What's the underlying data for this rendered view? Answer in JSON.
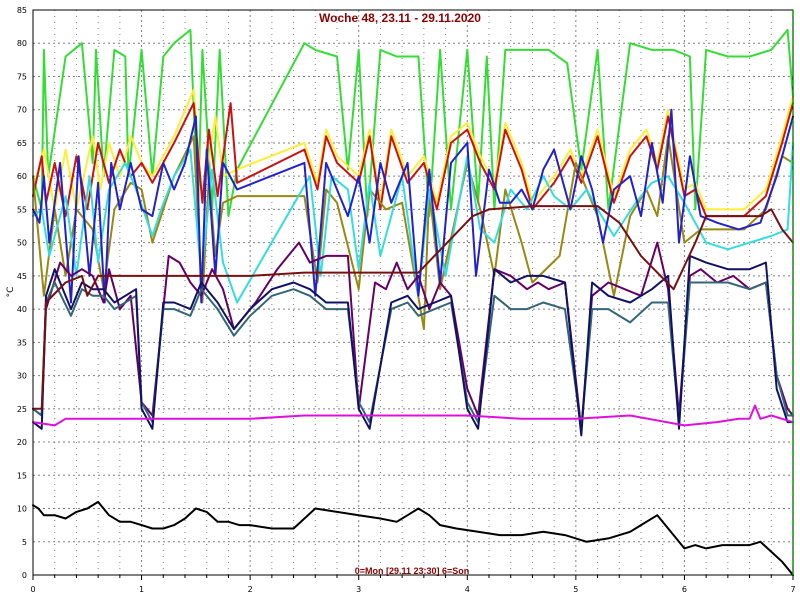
{
  "chart_data": {
    "type": "line",
    "title": "Woche 48, 23.11 - 29.11.2020",
    "subtitle": "0=Mon [29.11 23:30] 6=Son",
    "xlabel": "",
    "ylabel": "°C",
    "xlim": [
      0,
      7
    ],
    "ylim": [
      0,
      85
    ],
    "x_ticks": [
      0,
      1,
      2,
      3,
      4,
      5,
      6,
      7
    ],
    "y_ticks": [
      0,
      5,
      10,
      15,
      20,
      25,
      30,
      35,
      40,
      45,
      50,
      55,
      60,
      65,
      70,
      75,
      80,
      85
    ],
    "grid": true,
    "legend": "none",
    "colors": {
      "grid": "#808080",
      "end_marker": "#00a000",
      "title": "#8b0000",
      "frame": "#000000"
    },
    "series": [
      {
        "color": "#33dd33",
        "x": [
          0,
          0.08,
          0.1,
          0.14,
          0.3,
          0.45,
          0.55,
          0.58,
          0.65,
          0.75,
          0.85,
          0.88,
          1.0,
          1.1,
          1.2,
          1.3,
          1.45,
          1.52,
          1.56,
          1.65,
          1.72,
          1.8,
          1.88,
          2.5,
          2.6,
          2.8,
          2.9,
          3.0,
          3.08,
          3.2,
          3.35,
          3.55,
          3.65,
          3.75,
          3.85,
          4.0,
          4.1,
          4.18,
          4.25,
          4.35,
          4.5,
          4.6,
          4.75,
          4.92,
          5.05,
          5.2,
          5.3,
          5.5,
          5.7,
          5.9,
          6.05,
          6.1,
          6.2,
          6.4,
          6.6,
          6.8,
          6.95,
          7.0
        ],
        "values": [
          60,
          55,
          79,
          60,
          78,
          80,
          62,
          79,
          60,
          79,
          78,
          60,
          79,
          60,
          78,
          80,
          82,
          55,
          79,
          55,
          79,
          54,
          61,
          80,
          79,
          78,
          61,
          79,
          54,
          79,
          78,
          78,
          54,
          79,
          55,
          79,
          56,
          78,
          55,
          79,
          79,
          79,
          79,
          77,
          61,
          79,
          55,
          80,
          79,
          79,
          78,
          55,
          79,
          78,
          78,
          79,
          82,
          72
        ]
      },
      {
        "color": "#ffee33",
        "x": [
          0,
          0.1,
          0.2,
          0.3,
          0.4,
          0.55,
          0.62,
          0.7,
          0.8,
          0.9,
          1.0,
          1.1,
          1.3,
          1.48,
          1.56,
          1.68,
          1.75,
          1.88,
          2.5,
          2.62,
          2.7,
          2.8,
          3.0,
          3.1,
          3.2,
          3.3,
          3.45,
          3.6,
          3.72,
          3.85,
          4.0,
          4.12,
          4.25,
          4.35,
          4.5,
          4.6,
          4.8,
          4.95,
          5.05,
          5.2,
          5.35,
          5.5,
          5.65,
          5.75,
          5.85,
          6.0,
          6.1,
          6.2,
          6.35,
          6.55,
          6.75,
          6.9,
          7.0
        ],
        "values": [
          58,
          64,
          55,
          64,
          55,
          66,
          58,
          65,
          60,
          66,
          62,
          60,
          66,
          73,
          56,
          69,
          60,
          61,
          65,
          59,
          67,
          63,
          60,
          67,
          56,
          67,
          60,
          63,
          56,
          66,
          68,
          63,
          59,
          68,
          62,
          56,
          60,
          64,
          60,
          67,
          57,
          64,
          67,
          62,
          70,
          58,
          59,
          55,
          55,
          55,
          58,
          66,
          72
        ]
      },
      {
        "color": "#cc1111",
        "x": [
          0,
          0.08,
          0.12,
          0.2,
          0.3,
          0.4,
          0.5,
          0.6,
          0.7,
          0.8,
          0.9,
          1.0,
          1.1,
          1.3,
          1.48,
          1.56,
          1.62,
          1.7,
          1.82,
          1.88,
          2.5,
          2.62,
          2.7,
          2.8,
          3.0,
          3.1,
          3.2,
          3.3,
          3.45,
          3.6,
          3.72,
          3.85,
          4.0,
          4.12,
          4.25,
          4.35,
          4.5,
          4.6,
          4.8,
          4.95,
          5.05,
          5.2,
          5.35,
          5.5,
          5.65,
          5.75,
          5.85,
          6.0,
          6.1,
          6.2,
          6.35,
          6.55,
          6.75,
          6.9,
          7.0
        ],
        "values": [
          57,
          63,
          56,
          62,
          54,
          63,
          55,
          65,
          59,
          64,
          60,
          62,
          59,
          65,
          71,
          56,
          67,
          57,
          71,
          59,
          64,
          58,
          66,
          62,
          59,
          66,
          55,
          66,
          59,
          62,
          55,
          65,
          67,
          62,
          58,
          67,
          61,
          55,
          59,
          63,
          59,
          66,
          56,
          63,
          66,
          61,
          69,
          57,
          58,
          54,
          54,
          54,
          57,
          65,
          71
        ]
      },
      {
        "color": "#998811",
        "x": [
          0,
          0.1,
          0.2,
          0.3,
          0.4,
          0.55,
          0.65,
          0.75,
          0.9,
          1.0,
          1.1,
          1.3,
          1.48,
          1.56,
          1.62,
          1.68,
          1.75,
          1.88,
          2.5,
          2.62,
          2.7,
          2.8,
          3.0,
          3.1,
          3.25,
          3.4,
          3.6,
          3.65,
          3.75,
          4.0,
          4.12,
          4.25,
          4.35,
          4.5,
          4.6,
          4.85,
          5.0,
          5.1,
          5.2,
          5.35,
          5.5,
          5.65,
          5.75,
          5.85,
          6.0,
          6.15,
          6.35,
          6.55,
          6.75,
          6.9,
          7.0
        ],
        "values": [
          60,
          42,
          55,
          45,
          55,
          52,
          43,
          55,
          59,
          58,
          50,
          60,
          66,
          41,
          60,
          48,
          56,
          57,
          57,
          44,
          58,
          56,
          43,
          58,
          55,
          56,
          37,
          58,
          43,
          62,
          55,
          45,
          58,
          50,
          44,
          48,
          62,
          58,
          54,
          42,
          54,
          58,
          54,
          66,
          50,
          52,
          52,
          52,
          55,
          63,
          62
        ]
      },
      {
        "color": "#33dddd",
        "x": [
          0,
          0.08,
          0.15,
          0.3,
          0.4,
          0.52,
          0.6,
          0.7,
          0.85,
          0.95,
          1.1,
          1.18,
          1.3,
          1.45,
          1.55,
          1.65,
          1.75,
          1.88,
          2.55,
          2.65,
          2.75,
          2.9,
          3.0,
          3.1,
          3.2,
          3.4,
          3.55,
          3.65,
          3.8,
          4.0,
          4.12,
          4.25,
          4.4,
          4.55,
          4.7,
          4.8,
          4.95,
          5.1,
          5.2,
          5.35,
          5.55,
          5.7,
          5.85,
          6.0,
          6.2,
          6.4,
          6.6,
          6.8,
          6.95,
          7.0
        ],
        "values": [
          54,
          55,
          48,
          57,
          45,
          60,
          47,
          58,
          62,
          58,
          51,
          55,
          60,
          64,
          45,
          61,
          47,
          41,
          60,
          45,
          60,
          58,
          46,
          59,
          48,
          60,
          42,
          58,
          45,
          63,
          52,
          50,
          58,
          55,
          60,
          57,
          55,
          58,
          55,
          51,
          56,
          59,
          60,
          56,
          50,
          49,
          50,
          51,
          52,
          65
        ]
      },
      {
        "color": "#2222cc",
        "x": [
          0,
          0.06,
          0.1,
          0.15,
          0.25,
          0.35,
          0.42,
          0.52,
          0.6,
          0.66,
          0.72,
          0.8,
          0.9,
          1.0,
          1.1,
          1.2,
          1.3,
          1.4,
          1.5,
          1.55,
          1.6,
          1.68,
          1.75,
          1.88,
          2.5,
          2.6,
          2.7,
          2.8,
          2.9,
          3.0,
          3.1,
          3.2,
          3.3,
          3.45,
          3.55,
          3.65,
          3.75,
          3.85,
          4.0,
          4.08,
          4.2,
          4.3,
          4.4,
          4.5,
          4.6,
          4.7,
          4.8,
          4.95,
          5.05,
          5.15,
          5.25,
          5.35,
          5.5,
          5.6,
          5.7,
          5.8,
          5.88,
          5.95,
          6.05,
          6.15,
          6.3,
          6.5,
          6.7,
          6.85,
          6.95,
          7.0
        ],
        "values": [
          55,
          53,
          60,
          50,
          62,
          41,
          63,
          45,
          59,
          41,
          62,
          55,
          62,
          55,
          54,
          62,
          58,
          62,
          69,
          41,
          64,
          45,
          62,
          58,
          62,
          42,
          62,
          58,
          54,
          60,
          50,
          62,
          56,
          62,
          42,
          61,
          44,
          62,
          65,
          45,
          61,
          56,
          56,
          58,
          55,
          61,
          64,
          55,
          63,
          58,
          50,
          58,
          60,
          54,
          65,
          56,
          70,
          50,
          63,
          54,
          53,
          52,
          53,
          60,
          66,
          69
        ]
      },
      {
        "color": "#660066",
        "x": [
          0,
          0.08,
          0.12,
          0.25,
          0.35,
          0.45,
          0.55,
          0.65,
          0.7,
          0.8,
          0.9,
          1.0,
          1.1,
          1.25,
          1.35,
          1.45,
          1.55,
          1.65,
          1.75,
          1.85,
          2.05,
          2.25,
          2.45,
          2.55,
          2.7,
          2.9,
          3.0,
          3.15,
          3.25,
          3.35,
          3.45,
          3.55,
          3.65,
          3.75,
          3.85,
          4.0,
          4.1,
          4.25,
          4.4,
          4.55,
          4.65,
          4.75,
          4.9,
          5.05,
          5.15,
          5.3,
          5.45,
          5.6,
          5.75,
          5.85,
          5.95,
          6.05,
          6.15,
          6.3,
          6.45,
          6.6,
          6.75,
          6.85,
          6.95,
          7.0
        ],
        "values": [
          25,
          24,
          40,
          47,
          45,
          46,
          45,
          41,
          46,
          40,
          42,
          26,
          24,
          48,
          47,
          44,
          42,
          46,
          43,
          37,
          41,
          46,
          50,
          47,
          48,
          48,
          25,
          44,
          43,
          47,
          43,
          45,
          40,
          44,
          42,
          28,
          24,
          46,
          45,
          43,
          44,
          43,
          44,
          22,
          42,
          44,
          43,
          42,
          50,
          43,
          24,
          45,
          46,
          44,
          45,
          43,
          44,
          30,
          25,
          24
        ]
      },
      {
        "color": "#336677",
        "x": [
          0,
          0.08,
          0.12,
          0.2,
          0.35,
          0.45,
          0.55,
          0.65,
          0.75,
          0.85,
          0.95,
          1.0,
          1.1,
          1.2,
          1.3,
          1.45,
          1.55,
          1.7,
          1.85,
          2.0,
          2.2,
          2.4,
          2.55,
          2.7,
          2.9,
          3.0,
          3.1,
          3.3,
          3.45,
          3.55,
          3.7,
          3.85,
          4.0,
          4.1,
          4.25,
          4.4,
          4.55,
          4.7,
          4.9,
          5.05,
          5.15,
          5.3,
          5.5,
          5.7,
          5.85,
          5.95,
          6.05,
          6.2,
          6.4,
          6.6,
          6.75,
          6.85,
          6.95,
          7.0
        ],
        "values": [
          25,
          24,
          41,
          44,
          39,
          43,
          42,
          42,
          40,
          41,
          42,
          26,
          23,
          40,
          40,
          39,
          43,
          40,
          36,
          39,
          42,
          43,
          42,
          40,
          40,
          26,
          23,
          40,
          41,
          39,
          40,
          41,
          26,
          23,
          42,
          40,
          40,
          41,
          40,
          22,
          40,
          40,
          38,
          41,
          41,
          23,
          44,
          44,
          44,
          43,
          44,
          30,
          24,
          24
        ]
      },
      {
        "color": "#111166",
        "x": [
          0,
          0.08,
          0.12,
          0.2,
          0.35,
          0.45,
          0.55,
          0.65,
          0.75,
          0.85,
          0.95,
          1.0,
          1.1,
          1.2,
          1.3,
          1.45,
          1.55,
          1.7,
          1.85,
          2.0,
          2.2,
          2.4,
          2.55,
          2.7,
          2.9,
          3.0,
          3.1,
          3.3,
          3.45,
          3.55,
          3.7,
          3.85,
          4.0,
          4.1,
          4.25,
          4.4,
          4.55,
          4.7,
          4.9,
          5.05,
          5.15,
          5.3,
          5.5,
          5.7,
          5.85,
          5.95,
          6.05,
          6.2,
          6.4,
          6.6,
          6.75,
          6.85,
          6.95,
          7.0
        ],
        "values": [
          23,
          22,
          42,
          46,
          40,
          44,
          43,
          43,
          41,
          42,
          43,
          25,
          22,
          41,
          41,
          40,
          44,
          41,
          37,
          40,
          43,
          44,
          43,
          41,
          41,
          25,
          22,
          41,
          42,
          40,
          41,
          42,
          25,
          22,
          46,
          44,
          45,
          45,
          44,
          21,
          44,
          42,
          41,
          43,
          45,
          22,
          48,
          47,
          46,
          46,
          47,
          28,
          23,
          23
        ]
      },
      {
        "color": "#dd11dd",
        "x": [
          0,
          0.2,
          0.3,
          0.5,
          0.8,
          1.0,
          1.3,
          1.5,
          2.0,
          2.5,
          3.0,
          3.5,
          4.0,
          4.5,
          5.0,
          5.5,
          6.0,
          6.3,
          6.5,
          6.6,
          6.65,
          6.7,
          6.8,
          6.9,
          7.0
        ],
        "values": [
          23,
          22.5,
          23.5,
          23.5,
          23.5,
          23.5,
          23.5,
          23.5,
          23.5,
          24,
          24,
          24,
          24,
          23.5,
          23.5,
          24,
          22.5,
          23,
          23.5,
          23.5,
          25.5,
          23.5,
          24,
          23.5,
          23
        ]
      },
      {
        "color": "#771111",
        "x": [
          0,
          0.08,
          0.12,
          0.3,
          0.45,
          0.5,
          0.6,
          0.9,
          1.2,
          1.5,
          2.0,
          2.5,
          3.0,
          3.5,
          3.55,
          4.05,
          4.2,
          4.6,
          5.0,
          5.2,
          5.4,
          5.6,
          5.9,
          6.1,
          6.2,
          6.5,
          6.7,
          6.8,
          6.9,
          7.0
        ],
        "values": [
          25,
          25,
          41,
          44,
          45,
          42,
          45,
          45,
          45,
          45,
          45,
          45.5,
          45.5,
          45.5,
          45.5,
          54,
          55,
          55.5,
          55.5,
          55.5,
          53,
          48,
          43,
          50,
          54,
          54,
          54,
          55,
          52,
          50
        ]
      },
      {
        "color": "#000000",
        "x": [
          0,
          0.05,
          0.1,
          0.2,
          0.3,
          0.4,
          0.5,
          0.6,
          0.7,
          0.8,
          0.9,
          1.0,
          1.1,
          1.2,
          1.3,
          1.4,
          1.5,
          1.6,
          1.7,
          1.8,
          1.9,
          2.0,
          2.2,
          2.4,
          2.6,
          2.8,
          3.0,
          3.2,
          3.35,
          3.45,
          3.55,
          3.65,
          3.75,
          3.9,
          4.1,
          4.3,
          4.5,
          4.7,
          4.9,
          5.1,
          5.3,
          5.5,
          5.6,
          5.75,
          5.9,
          6.0,
          6.1,
          6.2,
          6.35,
          6.5,
          6.6,
          6.7,
          6.8,
          6.9,
          6.95,
          7.0
        ],
        "values": [
          10.5,
          10,
          9,
          9,
          8.5,
          9.5,
          10,
          11,
          9,
          8,
          8,
          7.5,
          7,
          7,
          7.5,
          8.5,
          10,
          9.5,
          8,
          8,
          7.5,
          7.5,
          7,
          7,
          10,
          9.5,
          9,
          8.5,
          8,
          9,
          10,
          9,
          7.5,
          7,
          6.5,
          6,
          6,
          6.5,
          6,
          5,
          5.5,
          6.5,
          7.5,
          9,
          6,
          4,
          4.5,
          4,
          4.5,
          4.5,
          4.5,
          5,
          3.5,
          2,
          1,
          0
        ]
      }
    ]
  }
}
